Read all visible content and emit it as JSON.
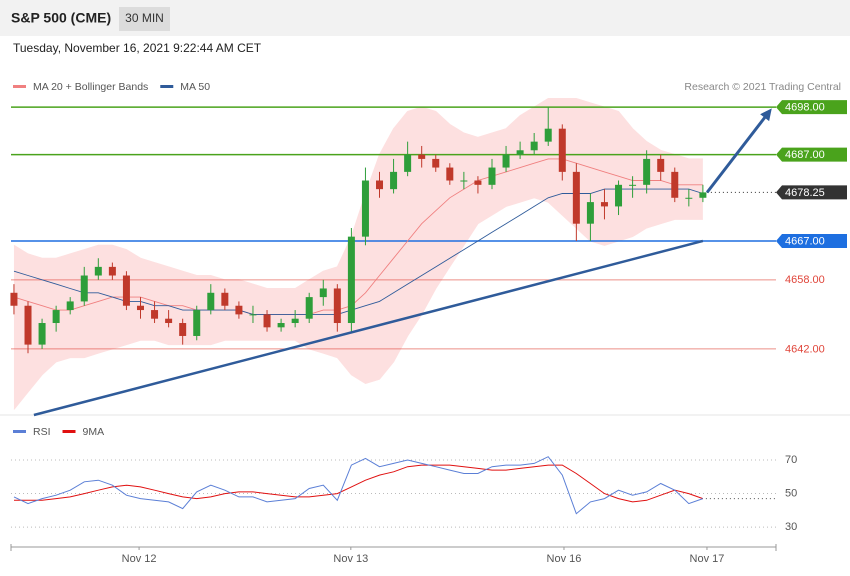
{
  "header": {
    "title": "S&P 500 (CME)",
    "interval": "30 MIN",
    "date": "Tuesday, November 16, 2021 9:22:44 AM CET",
    "credit": "Research © 2021 Trading Central"
  },
  "chart_data": [
    {
      "type": "candlestick",
      "xlim": [
        -0.21,
        54.2
      ],
      "ylim": [
        4626.7,
        4700.8
      ],
      "up_color": "#2e9e3a",
      "down_color": "#c0392b",
      "open": [
        4655,
        4652,
        4643,
        4648,
        4651,
        4653,
        4659,
        4661,
        4659,
        4652,
        4651,
        4649,
        4648,
        4645,
        4651,
        4655,
        4652,
        4650,
        4650,
        4647,
        4648,
        4649,
        4654,
        4656,
        4648,
        4668,
        4681,
        4679,
        4683,
        4687,
        4686,
        4684,
        4681,
        4681,
        4680,
        4684,
        4687,
        4688,
        4690,
        4693,
        4683,
        4671,
        4676,
        4675,
        4680,
        4680,
        4686,
        4683,
        4677,
        4677
      ],
      "high": [
        4657,
        4653,
        4649,
        4652,
        4654,
        4661,
        4663,
        4662,
        4660,
        4654,
        4653,
        4651,
        4649,
        4652,
        4657,
        4656,
        4653,
        4652,
        4651,
        4649,
        4651,
        4655,
        4658,
        4657,
        4670,
        4684,
        4683,
        4686,
        4690,
        4689,
        4687,
        4685,
        4683,
        4682,
        4686,
        4689,
        4690,
        4692,
        4698,
        4694,
        4685,
        4678,
        4679,
        4681,
        4682,
        4688,
        4687,
        4684,
        4679,
        4680
      ],
      "low": [
        4650,
        4641,
        4642,
        4646,
        4650,
        4652,
        4658,
        4658,
        4651,
        4649,
        4648,
        4647,
        4643,
        4644,
        4650,
        4651,
        4649,
        4648,
        4646,
        4646,
        4647,
        4648,
        4652,
        4646,
        4646,
        4666,
        4677,
        4678,
        4682,
        4684,
        4683,
        4680,
        4679,
        4678,
        4679,
        4683,
        4686,
        4687,
        4689,
        4681,
        4667,
        4667,
        4672,
        4673,
        4677,
        4678,
        4681,
        4676,
        4675,
        4676
      ],
      "close": [
        4652,
        4643,
        4648,
        4651,
        4653,
        4659,
        4661,
        4659,
        4652,
        4651,
        4649,
        4648,
        4645,
        4651,
        4655,
        4652,
        4650,
        4650,
        4647,
        4648,
        4649,
        4654,
        4656,
        4648,
        4668,
        4681,
        4679,
        4683,
        4687,
        4686,
        4684,
        4681,
        4681,
        4680,
        4684,
        4687,
        4688,
        4690,
        4693,
        4683,
        4671,
        4676,
        4675,
        4680,
        4680,
        4686,
        4683,
        4677,
        4677,
        4678.25
      ],
      "series": [
        {
          "name": "MA 20 + Bollinger Bands",
          "color": "#f08080",
          "band_color": "#fde0e0",
          "values": [
            4654,
            4653,
            4652,
            4651,
            4651,
            4652,
            4653,
            4654,
            4654,
            4654,
            4653,
            4652,
            4652,
            4651,
            4651,
            4651,
            4651,
            4650,
            4650,
            4650,
            4650,
            4650,
            4651,
            4651,
            4652,
            4655,
            4659,
            4663,
            4667,
            4671,
            4674,
            4677,
            4679,
            4681,
            4682,
            4683,
            4684,
            4685,
            4686,
            4686,
            4685,
            4684,
            4683,
            4682,
            4681,
            4681,
            4681,
            4680,
            4680,
            4680
          ],
          "upper": [
            4666,
            4664,
            4663,
            4663,
            4664,
            4665,
            4666,
            4666,
            4665,
            4663,
            4662,
            4661,
            4660,
            4659,
            4659,
            4658,
            4658,
            4657,
            4656,
            4656,
            4656,
            4658,
            4660,
            4661,
            4668,
            4678,
            4687,
            4693,
            4697,
            4698,
            4697,
            4694,
            4692,
            4691,
            4692,
            4693,
            4696,
            4698,
            4700,
            4700,
            4700,
            4699,
            4698,
            4697,
            4693,
            4690,
            4688,
            4687,
            4686,
            4686
          ],
          "lower": [
            4628,
            4632,
            4636,
            4639,
            4640,
            4640,
            4641,
            4642,
            4643,
            4644,
            4644,
            4643,
            4643,
            4643,
            4643,
            4644,
            4644,
            4644,
            4644,
            4644,
            4644,
            4642,
            4641,
            4640,
            4636,
            4634,
            4635,
            4639,
            4645,
            4650,
            4656,
            4661,
            4666,
            4671,
            4673,
            4675,
            4676,
            4677,
            4676,
            4673,
            4670,
            4667,
            4666,
            4667,
            4668,
            4670,
            4671,
            4672,
            4672,
            4672
          ]
        },
        {
          "name": "MA 50",
          "color": "#2f5b9a",
          "values": [
            4660,
            4659,
            4658,
            4657,
            4656,
            4655,
            4655,
            4654,
            4653,
            4653,
            4652,
            4652,
            4651,
            4651,
            4651,
            4651,
            4651,
            4650,
            4650,
            4650,
            4650,
            4650,
            4650,
            4650,
            4651,
            4652,
            4653,
            4655,
            4657,
            4659,
            4661,
            4663,
            4665,
            4667,
            4669,
            4671,
            4673,
            4675,
            4677,
            4678,
            4678,
            4678,
            4679,
            4679,
            4679,
            4679,
            4679,
            4679,
            4679,
            4678
          ]
        }
      ],
      "levels": [
        {
          "value": 4698,
          "label": "4698.00",
          "color": "#4aa31c",
          "style": "box"
        },
        {
          "value": 4687,
          "label": "4687.00",
          "color": "#4aa31c",
          "style": "box"
        },
        {
          "value": 4678.25,
          "label": "4678.25",
          "color": "#333333",
          "style": "box",
          "line": "dotted"
        },
        {
          "value": 4667,
          "label": "4667.00",
          "color": "#1e6fe0",
          "style": "box"
        },
        {
          "value": 4658,
          "label": "4658.00",
          "color": "#e0453a",
          "style": "text"
        },
        {
          "value": 4642,
          "label": "4642.00",
          "color": "#e0453a",
          "style": "text"
        }
      ],
      "trendline": {
        "x": [
          1.42,
          49
        ],
        "values": [
          4626.7,
          4667
        ],
        "color": "#2f5b9a"
      },
      "projection": {
        "x": [
          49.3,
          53.9
        ],
        "values": [
          4678.25,
          4697.7
        ],
        "color": "#2f5b9a"
      }
    },
    {
      "type": "line",
      "xlim": [
        -0.21,
        54.2
      ],
      "ylim": [
        19.3,
        93.9
      ],
      "yticks": [
        30,
        50,
        70
      ],
      "grid": true,
      "xticks": [
        {
          "value": 8.9,
          "label": "Nov 12"
        },
        {
          "value": 23.96,
          "label": "Nov 13"
        },
        {
          "value": 39.12,
          "label": "Nov 16"
        },
        {
          "value": 49.29,
          "label": "Nov 17"
        }
      ],
      "series": [
        {
          "name": "RSI",
          "color": "#5b7fd6",
          "values": [
            48,
            44,
            47,
            49,
            52,
            57,
            58,
            55,
            49,
            47,
            46,
            45,
            41,
            51,
            55,
            52,
            48,
            48,
            45,
            46,
            47,
            53,
            55,
            46,
            67,
            71,
            66,
            68,
            70,
            68,
            66,
            64,
            62,
            62,
            66,
            67,
            67,
            68,
            72,
            61,
            38,
            45,
            47,
            52,
            49,
            51,
            56,
            52,
            44,
            47
          ]
        },
        {
          "name": "9MA",
          "color": "#e01010",
          "values": [
            46,
            46,
            46,
            47,
            48,
            50,
            52,
            54,
            55,
            54,
            52,
            50,
            48,
            47,
            48,
            50,
            51,
            51,
            50,
            49,
            48,
            48,
            49,
            50,
            54,
            58,
            61,
            63,
            66,
            67,
            67,
            67,
            66,
            65,
            64,
            64,
            65,
            66,
            67,
            67,
            62,
            56,
            50,
            47,
            45,
            46,
            49,
            52,
            50,
            47
          ]
        }
      ]
    }
  ]
}
